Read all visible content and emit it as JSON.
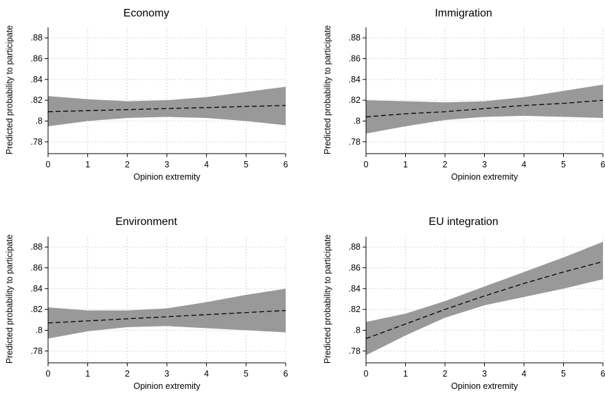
{
  "chart_data": [
    {
      "type": "line",
      "title": "Economy",
      "xlabel": "Opinion extremity",
      "ylabel": "Predicted probability to participate",
      "xlim": [
        0,
        6
      ],
      "ylim": [
        0.77,
        0.89
      ],
      "xticks": [
        0,
        1,
        2,
        3,
        4,
        5,
        6
      ],
      "xtick_labels": [
        "0",
        "1",
        "2",
        "3",
        "4",
        "5",
        "6"
      ],
      "yticks": [
        0.78,
        0.8,
        0.82,
        0.84,
        0.86,
        0.88
      ],
      "ytick_labels": [
        ".78",
        ".8",
        ".82",
        ".84",
        ".86",
        ".88"
      ],
      "grid": true,
      "series": [
        {
          "x": [
            0,
            1,
            2,
            3,
            4,
            5,
            6
          ],
          "values": [
            0.809,
            0.81,
            0.811,
            0.812,
            0.813,
            0.814,
            0.815
          ],
          "ci_lower": [
            0.795,
            0.8,
            0.803,
            0.804,
            0.803,
            0.8,
            0.796
          ],
          "ci_upper": [
            0.824,
            0.821,
            0.819,
            0.82,
            0.823,
            0.828,
            0.833
          ]
        }
      ]
    },
    {
      "type": "line",
      "title": "Immigration",
      "xlabel": "Opinion extremity",
      "ylabel": "Predicted probability to participate",
      "xlim": [
        0,
        6
      ],
      "ylim": [
        0.77,
        0.89
      ],
      "xticks": [
        0,
        1,
        2,
        3,
        4,
        5,
        6
      ],
      "xtick_labels": [
        "0",
        "1",
        "2",
        "3",
        "4",
        "5",
        "6"
      ],
      "yticks": [
        0.78,
        0.8,
        0.82,
        0.84,
        0.86,
        0.88
      ],
      "ytick_labels": [
        ".78",
        ".8",
        ".82",
        ".84",
        ".86",
        ".88"
      ],
      "grid": true,
      "series": [
        {
          "x": [
            0,
            1,
            2,
            3,
            4,
            5,
            6
          ],
          "values": [
            0.804,
            0.807,
            0.809,
            0.812,
            0.815,
            0.817,
            0.82
          ],
          "ci_lower": [
            0.788,
            0.795,
            0.801,
            0.804,
            0.805,
            0.804,
            0.803
          ],
          "ci_upper": [
            0.82,
            0.819,
            0.818,
            0.819,
            0.823,
            0.829,
            0.835
          ]
        }
      ]
    },
    {
      "type": "line",
      "title": "Environment",
      "xlabel": "Opinion extremity",
      "ylabel": "Predicted probability to participate",
      "xlim": [
        0,
        6
      ],
      "ylim": [
        0.77,
        0.89
      ],
      "xticks": [
        0,
        1,
        2,
        3,
        4,
        5,
        6
      ],
      "xtick_labels": [
        "0",
        "1",
        "2",
        "3",
        "4",
        "5",
        "6"
      ],
      "yticks": [
        0.78,
        0.8,
        0.82,
        0.84,
        0.86,
        0.88
      ],
      "ytick_labels": [
        ".78",
        ".8",
        ".82",
        ".84",
        ".86",
        ".88"
      ],
      "grid": true,
      "series": [
        {
          "x": [
            0,
            1,
            2,
            3,
            4,
            5,
            6
          ],
          "values": [
            0.807,
            0.809,
            0.811,
            0.813,
            0.815,
            0.817,
            0.819
          ],
          "ci_lower": [
            0.792,
            0.799,
            0.803,
            0.804,
            0.802,
            0.8,
            0.798
          ],
          "ci_upper": [
            0.822,
            0.819,
            0.819,
            0.821,
            0.827,
            0.834,
            0.84
          ]
        }
      ]
    },
    {
      "type": "line",
      "title": "EU integration",
      "xlabel": "Opinion extremity",
      "ylabel": "Predicted probability to participate",
      "xlim": [
        0,
        6
      ],
      "ylim": [
        0.77,
        0.89
      ],
      "xticks": [
        0,
        1,
        2,
        3,
        4,
        5,
        6
      ],
      "xtick_labels": [
        "0",
        "1",
        "2",
        "3",
        "4",
        "5",
        "6"
      ],
      "yticks": [
        0.78,
        0.8,
        0.82,
        0.84,
        0.86,
        0.88
      ],
      "ytick_labels": [
        ".78",
        ".8",
        ".82",
        ".84",
        ".86",
        ".88"
      ],
      "grid": true,
      "series": [
        {
          "x": [
            0,
            1,
            2,
            3,
            4,
            5,
            6
          ],
          "values": [
            0.792,
            0.806,
            0.82,
            0.833,
            0.845,
            0.856,
            0.866
          ],
          "ci_lower": [
            0.776,
            0.795,
            0.812,
            0.824,
            0.832,
            0.84,
            0.849
          ],
          "ci_upper": [
            0.808,
            0.816,
            0.828,
            0.842,
            0.856,
            0.87,
            0.885
          ]
        }
      ]
    }
  ],
  "style": {
    "band_color": "#999999",
    "line_color": "#000000",
    "grid_color": "#c8c8c8",
    "axis_color": "#000000"
  }
}
